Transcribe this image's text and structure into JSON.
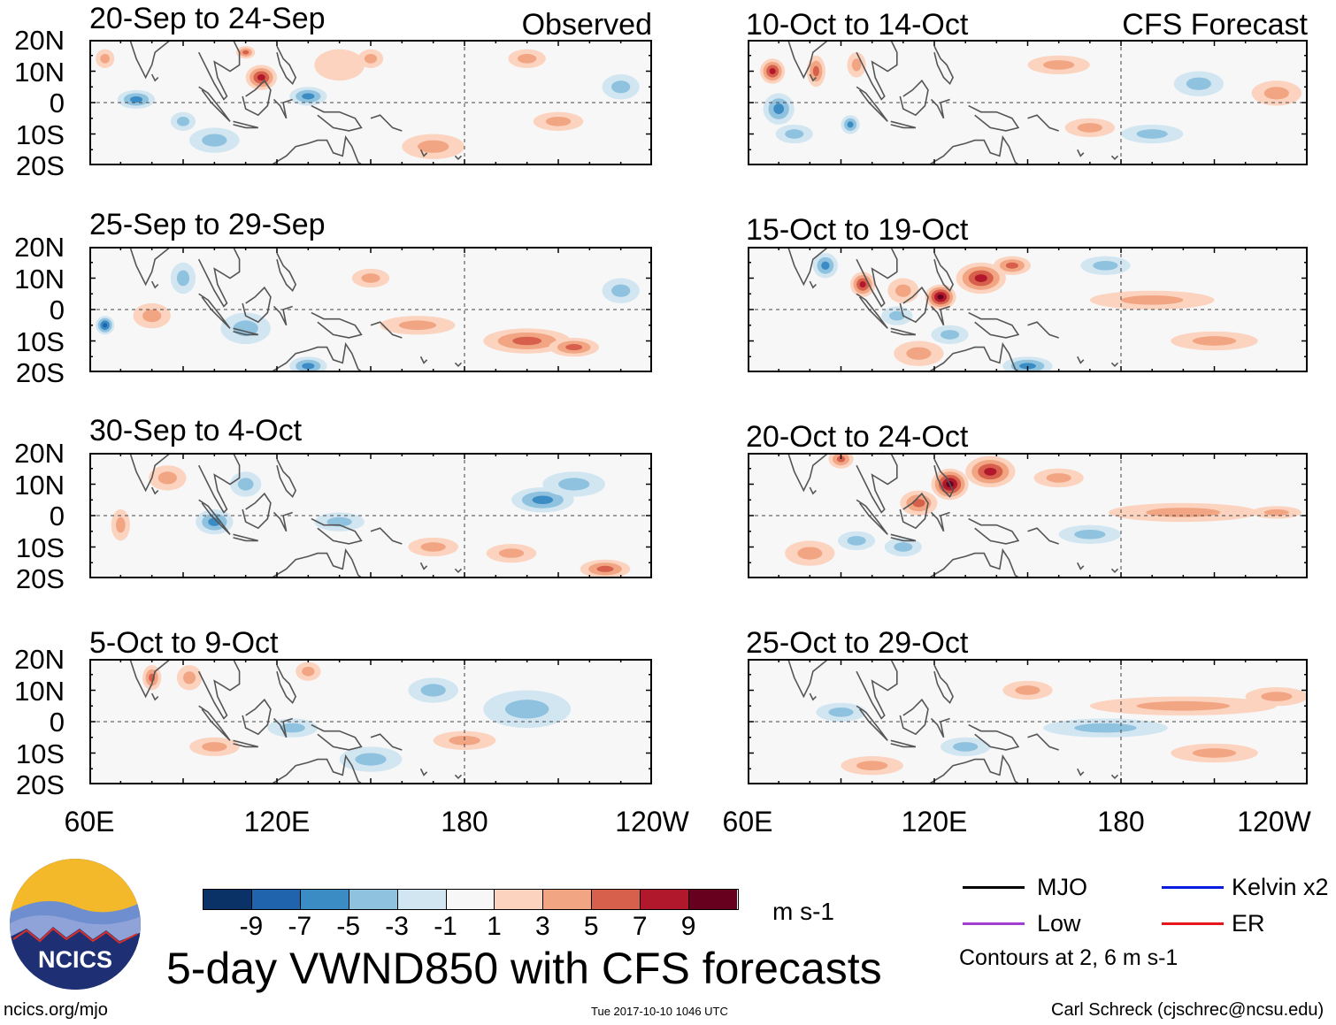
{
  "chart_data": {
    "type": "heatmap",
    "title": "5-day VWND850 with CFS forecasts",
    "units": "m s-1",
    "x_tick_labels": [
      "60E",
      "120E",
      "180",
      "120W"
    ],
    "y_tick_labels": [
      "20N",
      "10N",
      "0",
      "10S",
      "20S"
    ],
    "x_range_deg_east": [
      60,
      240
    ],
    "y_range_deg": [
      -20,
      20
    ],
    "colorbar": {
      "tick_labels": [
        "-9",
        "-7",
        "-5",
        "-3",
        "-1",
        "1",
        "3",
        "5",
        "7",
        "9"
      ],
      "colors": [
        "#0b3266",
        "#1f64ad",
        "#3b8cc4",
        "#8fc2de",
        "#d2e6f2",
        "#f7f7f7",
        "#fbd3bf",
        "#f2a583",
        "#d7604d",
        "#b2182b",
        "#67001f"
      ]
    },
    "panels": [
      {
        "id": "p1",
        "period": "20-Sep to 24-Sep",
        "tag": "Observed",
        "blobs": [
          [
            140,
            12,
            8,
            5,
            1.2
          ],
          [
            150,
            14,
            4,
            3,
            2.5
          ],
          [
            115,
            8,
            5,
            4,
            6
          ],
          [
            110,
            16,
            3,
            2,
            4
          ],
          [
            75,
            1,
            6,
            3,
            -4
          ],
          [
            90,
            -6,
            4,
            3,
            -3
          ],
          [
            130,
            2,
            6,
            3,
            -4
          ],
          [
            200,
            14,
            6,
            3,
            3
          ],
          [
            210,
            -6,
            8,
            3,
            3
          ],
          [
            100,
            -12,
            8,
            4,
            -3
          ],
          [
            170,
            -14,
            10,
            4,
            2
          ],
          [
            230,
            5,
            6,
            4,
            -3
          ],
          [
            65,
            14,
            3,
            3,
            2
          ]
        ]
      },
      {
        "id": "p2",
        "period": "25-Sep to 29-Sep",
        "tag": "",
        "blobs": [
          [
            65,
            -5,
            3,
            3,
            -6
          ],
          [
            90,
            10,
            4,
            5,
            -3
          ],
          [
            110,
            -6,
            8,
            5,
            -3
          ],
          [
            200,
            -10,
            14,
            4,
            5
          ],
          [
            215,
            -12,
            8,
            3,
            5
          ],
          [
            130,
            -18,
            6,
            3,
            -4
          ],
          [
            165,
            -5,
            12,
            3,
            2
          ],
          [
            80,
            -2,
            6,
            4,
            2
          ],
          [
            230,
            6,
            6,
            4,
            -3
          ],
          [
            150,
            10,
            6,
            3,
            2
          ]
        ]
      },
      {
        "id": "p3",
        "period": "30-Sep to 4-Oct",
        "tag": "",
        "blobs": [
          [
            205,
            5,
            10,
            4,
            -5
          ],
          [
            215,
            10,
            10,
            4,
            -3
          ],
          [
            100,
            -2,
            6,
            4,
            -4
          ],
          [
            70,
            -3,
            3,
            5,
            3
          ],
          [
            225,
            -17,
            8,
            3,
            5
          ],
          [
            195,
            -12,
            8,
            3,
            3
          ],
          [
            140,
            -2,
            8,
            3,
            -2
          ],
          [
            170,
            -10,
            8,
            3,
            2
          ],
          [
            110,
            10,
            5,
            4,
            -2
          ],
          [
            85,
            12,
            6,
            4,
            2
          ]
        ]
      },
      {
        "id": "p4",
        "period": "5-Oct to 9-Oct",
        "tag": "",
        "blobs": [
          [
            80,
            14,
            3,
            4,
            5
          ],
          [
            92,
            14,
            4,
            4,
            2
          ],
          [
            130,
            16,
            4,
            3,
            2
          ],
          [
            100,
            -8,
            8,
            3,
            2
          ],
          [
            150,
            -12,
            10,
            4,
            -3
          ],
          [
            180,
            -6,
            10,
            3,
            2
          ],
          [
            200,
            4,
            14,
            6,
            -2
          ],
          [
            170,
            10,
            8,
            4,
            -2
          ],
          [
            125,
            -2,
            8,
            3,
            -2
          ]
        ]
      },
      {
        "id": "p5",
        "period": "10-Oct to 14-Oct",
        "tag": "CFS Forecast",
        "blobs": [
          [
            68,
            10,
            4,
            4,
            6
          ],
          [
            82,
            10,
            3,
            5,
            5
          ],
          [
            95,
            12,
            3,
            4,
            3
          ],
          [
            70,
            -2,
            5,
            5,
            -4
          ],
          [
            93,
            -7,
            3,
            3,
            -5
          ],
          [
            75,
            -10,
            6,
            3,
            -3
          ],
          [
            170,
            -8,
            8,
            3,
            3
          ],
          [
            205,
            6,
            8,
            4,
            -2
          ],
          [
            190,
            -10,
            10,
            3,
            -2
          ],
          [
            230,
            3,
            8,
            4,
            2
          ],
          [
            160,
            12,
            10,
            3,
            2
          ]
        ]
      },
      {
        "id": "p6",
        "period": "15-Oct to 19-Oct",
        "tag": "",
        "blobs": [
          [
            85,
            14,
            4,
            4,
            -5
          ],
          [
            97,
            8,
            4,
            4,
            6
          ],
          [
            122,
            4,
            5,
            4,
            8
          ],
          [
            135,
            10,
            8,
            5,
            7
          ],
          [
            110,
            6,
            5,
            4,
            3
          ],
          [
            145,
            14,
            6,
            3,
            4
          ],
          [
            108,
            -2,
            5,
            3,
            -3
          ],
          [
            115,
            -14,
            8,
            4,
            3
          ],
          [
            125,
            -8,
            6,
            3,
            -3
          ],
          [
            150,
            -18,
            8,
            3,
            -4
          ],
          [
            190,
            3,
            20,
            3,
            2
          ],
          [
            210,
            -10,
            14,
            3,
            2
          ],
          [
            175,
            14,
            8,
            3,
            -2
          ]
        ]
      },
      {
        "id": "p7",
        "period": "20-Oct to 24-Oct",
        "tag": "",
        "blobs": [
          [
            125,
            10,
            6,
            5,
            8
          ],
          [
            138,
            14,
            8,
            5,
            6
          ],
          [
            115,
            4,
            6,
            4,
            4
          ],
          [
            90,
            18,
            4,
            3,
            5
          ],
          [
            95,
            -8,
            6,
            3,
            -3
          ],
          [
            200,
            1,
            24,
            3,
            2
          ],
          [
            230,
            1,
            8,
            2,
            3
          ],
          [
            170,
            -6,
            10,
            3,
            -2
          ],
          [
            110,
            -10,
            6,
            3,
            -2
          ],
          [
            160,
            12,
            8,
            3,
            2
          ],
          [
            80,
            -12,
            8,
            4,
            2
          ]
        ]
      },
      {
        "id": "p8",
        "period": "25-Oct to 29-Oct",
        "tag": "",
        "blobs": [
          [
            200,
            5,
            30,
            3,
            3
          ],
          [
            230,
            8,
            10,
            3,
            2
          ],
          [
            175,
            -2,
            20,
            3,
            -3
          ],
          [
            130,
            -8,
            8,
            3,
            -2
          ],
          [
            100,
            -14,
            10,
            3,
            2
          ],
          [
            150,
            10,
            8,
            3,
            2
          ],
          [
            210,
            -10,
            14,
            3,
            2
          ],
          [
            90,
            3,
            8,
            3,
            -2
          ]
        ]
      }
    ],
    "contour_legend": [
      {
        "name": "MJO",
        "color": "#000000"
      },
      {
        "name": "Low",
        "color": "#a03fcf"
      },
      {
        "name": "Kelvin x2",
        "color": "#0b1be0"
      },
      {
        "name": "ER",
        "color": "#e8161c"
      }
    ],
    "contour_note": "Contours at 2, 6 m s-1"
  },
  "logo": {
    "text": "NCICS"
  },
  "footer": {
    "url": "ncics.org/mjo",
    "timestamp": "Tue 2017-10-10 1046 UTC",
    "author": "Carl Schreck (cjschrec@ncsu.edu)"
  }
}
